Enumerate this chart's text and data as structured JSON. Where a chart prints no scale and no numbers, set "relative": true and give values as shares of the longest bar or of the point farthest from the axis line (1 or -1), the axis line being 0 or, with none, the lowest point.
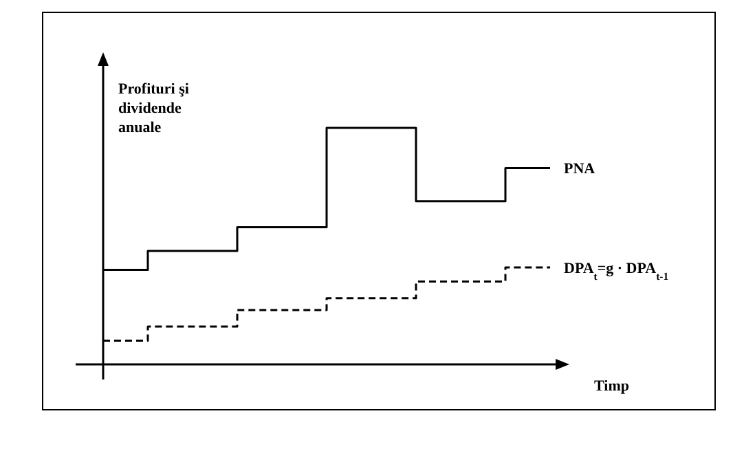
{
  "chart_data": {
    "type": "step",
    "relative": true,
    "ylabel": "Profituri şi dividende anuale",
    "xlabel": "Timp",
    "categories": [
      null,
      null,
      null,
      null,
      null,
      null
    ],
    "series": [
      {
        "name": "PNA",
        "color": "#000000",
        "line_style": "solid",
        "values": [
          0.4,
          0.48,
          0.58,
          1,
          0.69,
          0.83
        ]
      },
      {
        "name": "DPA$_{t}$=g · DPA$_{t-1}$",
        "color": "#000000",
        "line_style": "dashed",
        "values": [
          0.1,
          0.16,
          0.23,
          0.28,
          0.35,
          0.41
        ]
      }
    ]
  }
}
